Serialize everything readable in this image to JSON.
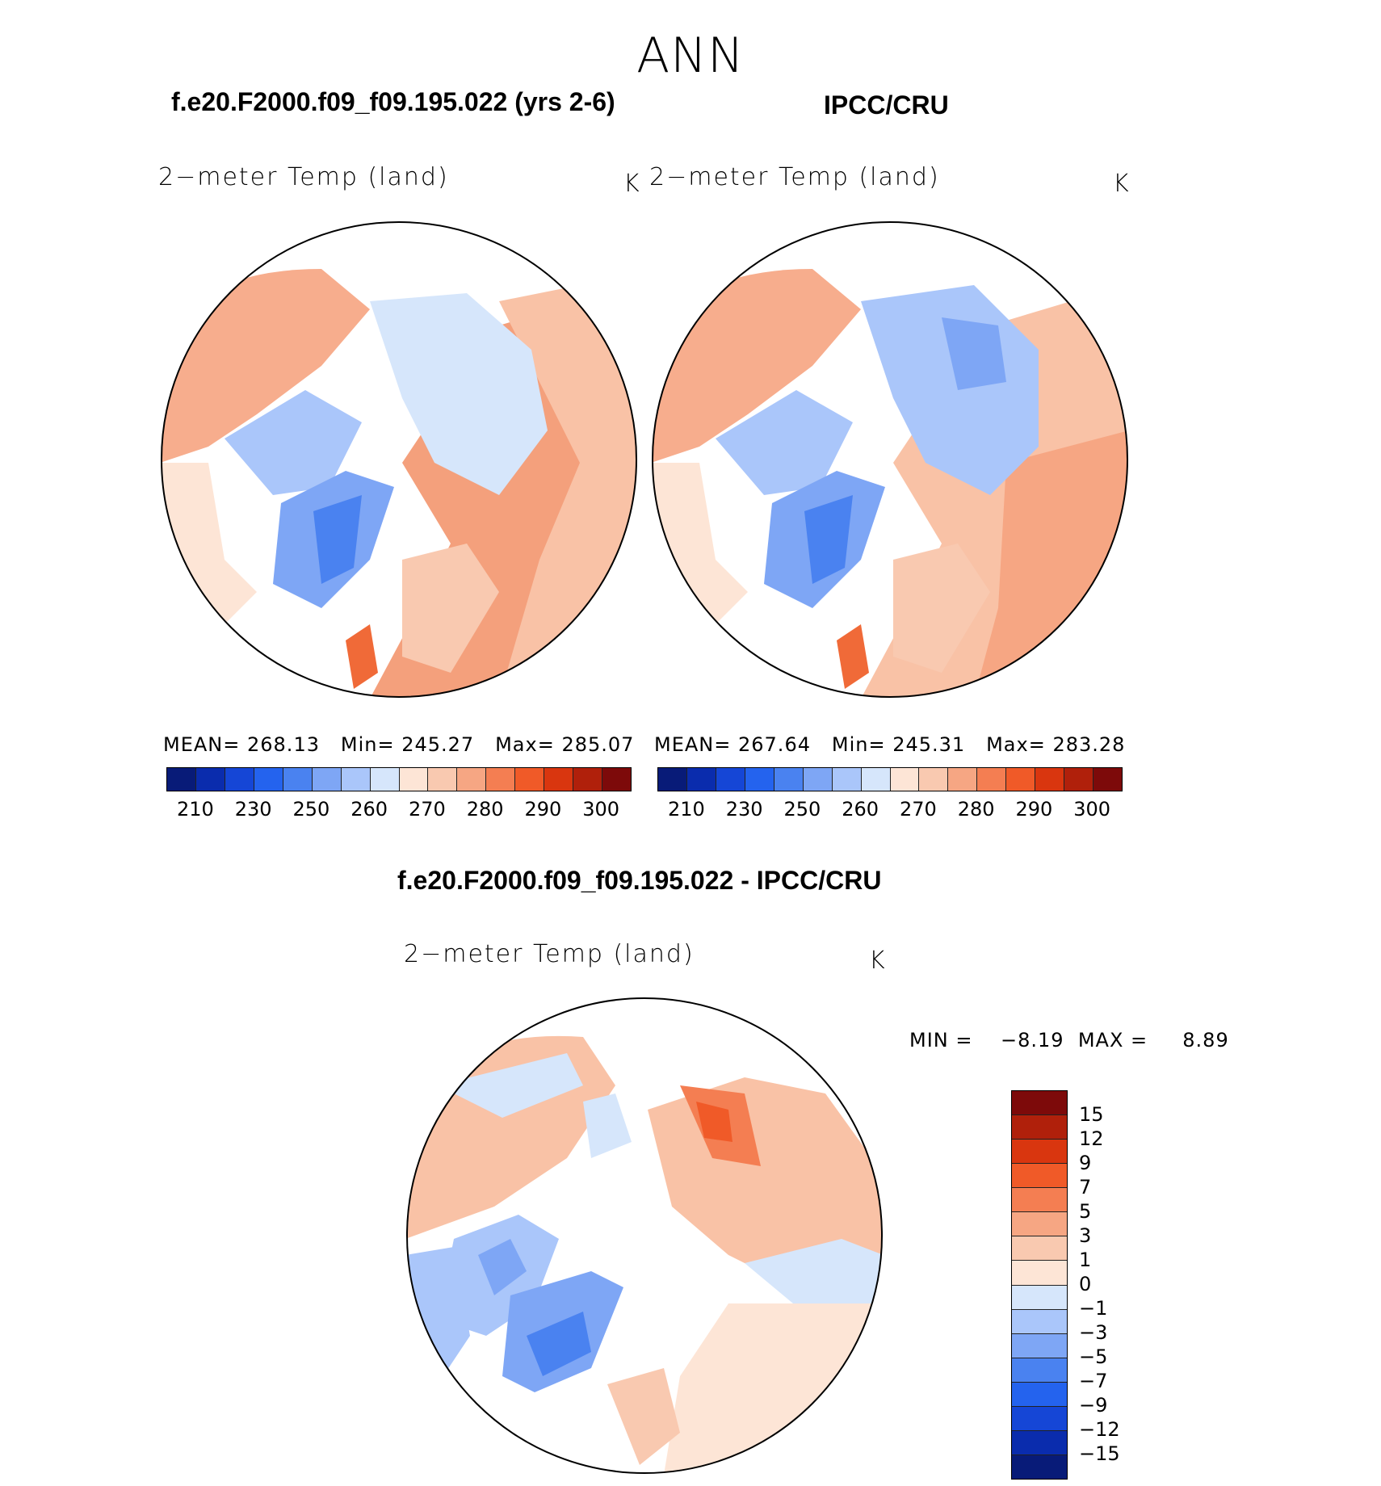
{
  "season": "ANN",
  "panels": {
    "model": {
      "title": "f.e20.F2000.f09_f09.195.022 (yrs 2-6)",
      "variable": "2−meter Temp (land)",
      "unit": "K",
      "stats": {
        "mean_label": "MEAN=",
        "mean": "268.13",
        "min_label": "Min=",
        "min": "245.27",
        "max_label": "Max=",
        "max": "285.07"
      }
    },
    "obs": {
      "title": "IPCC/CRU",
      "variable": "2−meter Temp (land)",
      "unit": "K",
      "stats": {
        "mean_label": "MEAN=",
        "mean": "267.64",
        "min_label": "Min=",
        "min": "245.31",
        "max_label": "Max=",
        "max": "283.28"
      }
    },
    "diff": {
      "title": "f.e20.F2000.f09_f09.195.022 - IPCC/CRU",
      "variable": "2−meter Temp (land)",
      "unit": "K",
      "stats": {
        "min_label": "MIN =",
        "min": "−8.19",
        "max_label": "MAX =",
        "max": "8.89"
      }
    }
  },
  "colorbar_abs": {
    "colors": [
      "#081b78",
      "#0a2cad",
      "#1546d6",
      "#2463ee",
      "#4a82f0",
      "#7ea6f5",
      "#aac6fa",
      "#d6e6fb",
      "#fde5d6",
      "#f9c9b0",
      "#f6a683",
      "#f47e52",
      "#f05a28",
      "#d9360f",
      "#b0200b",
      "#7d0a0a"
    ],
    "ticks": [
      "210",
      "230",
      "250",
      "260",
      "270",
      "280",
      "290",
      "300"
    ]
  },
  "colorbar_diff": {
    "colors": [
      "#7d0a0a",
      "#b0200b",
      "#d9360f",
      "#f05a28",
      "#f47e52",
      "#f6a683",
      "#f9c9b0",
      "#fde5d6",
      "#d6e6fb",
      "#aac6fa",
      "#7ea6f5",
      "#4a82f0",
      "#2463ee",
      "#1546d6",
      "#0a2cad",
      "#081b78"
    ],
    "ticks": [
      "15",
      "12",
      "9",
      "7",
      "5",
      "3",
      "1",
      "0",
      "−1",
      "−3",
      "−5",
      "−7",
      "−9",
      "−12",
      "−15"
    ]
  }
}
